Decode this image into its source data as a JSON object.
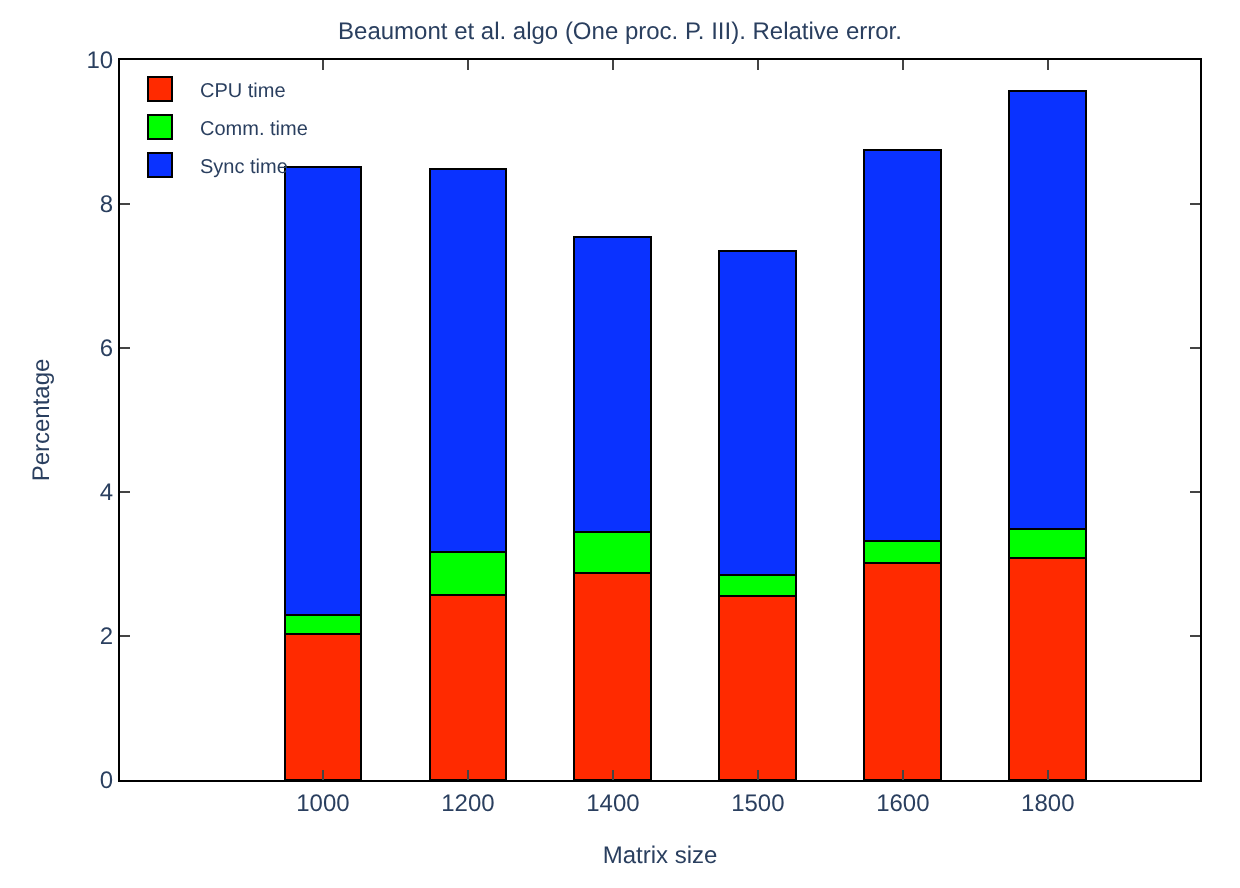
{
  "chart_data": {
    "type": "bar",
    "stacked": true,
    "title": "Beaumont et al. algo (One proc. P. III). Relative error.",
    "xlabel": "Matrix size",
    "ylabel": "Percentage",
    "categories": [
      "1000",
      "1200",
      "1400",
      "1500",
      "1600",
      "1800"
    ],
    "series": [
      {
        "name": "CPU time",
        "color": "#ff2a00",
        "values": [
          2.03,
          2.57,
          2.88,
          2.56,
          3.01,
          3.08
        ]
      },
      {
        "name": "Comm. time",
        "color": "#00ff00",
        "values": [
          0.26,
          0.59,
          0.56,
          0.29,
          0.31,
          0.41
        ]
      },
      {
        "name": "Sync time",
        "color": "#0a32ff",
        "values": [
          6.22,
          5.32,
          4.1,
          4.5,
          5.43,
          6.08
        ]
      }
    ],
    "ylim": [
      0,
      10
    ],
    "yticks": [
      0,
      2,
      4,
      6,
      8,
      10
    ],
    "legend": "top left"
  }
}
